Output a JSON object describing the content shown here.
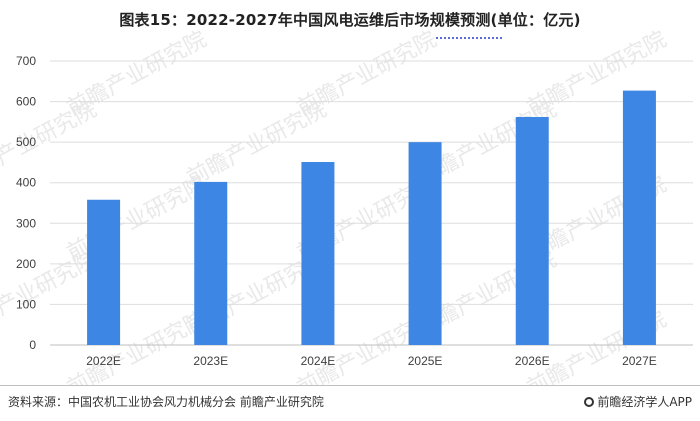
{
  "title": "图表15：2022-2027年中国风电运维后市场规模预测(单位：亿元)",
  "footer": {
    "source": "资料来源：中国农机工业协会风力机械分会 前瞻产业研究院",
    "brand": "前瞻经济学人APP"
  },
  "watermark": {
    "text": "前瞻产业研究院"
  },
  "colors": {
    "bar": "#3d86e3",
    "grid": "#dddddd",
    "axis": "#bfbfbf"
  },
  "chart_data": {
    "type": "bar",
    "title": "图表15：2022-2027年中国风电运维后市场规模预测(单位：亿元)",
    "categories": [
      "2022E",
      "2023E",
      "2024E",
      "2025E",
      "2026E",
      "2027E"
    ],
    "values": [
      358,
      402,
      451,
      500,
      562,
      627
    ],
    "ylim": [
      0,
      700
    ],
    "yticks": [
      "0",
      "100",
      "200",
      "300",
      "400",
      "500",
      "600",
      "700"
    ],
    "grid": true,
    "legend": "none"
  }
}
